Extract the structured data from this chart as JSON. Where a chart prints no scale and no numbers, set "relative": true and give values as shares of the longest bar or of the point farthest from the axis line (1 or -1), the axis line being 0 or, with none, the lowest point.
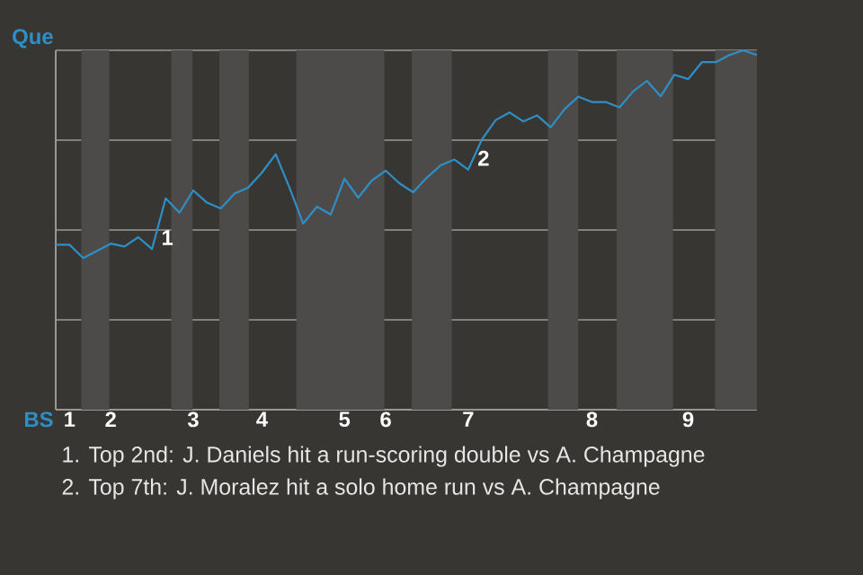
{
  "chart_data": {
    "type": "line",
    "color": "#2e8fc8",
    "relative": true,
    "categories": [
      null,
      "1",
      null,
      null,
      "2",
      null,
      null,
      null,
      null,
      null,
      "3",
      null,
      null,
      null,
      null,
      "4",
      null,
      null,
      null,
      null,
      null,
      "5",
      null,
      null,
      "6",
      null,
      null,
      null,
      null,
      null,
      "7",
      null,
      null,
      null,
      null,
      null,
      null,
      null,
      null,
      "8",
      null,
      null,
      null,
      null,
      null,
      null,
      "9",
      null,
      null,
      null,
      null,
      null
    ],
    "values": [
      0.459,
      0.459,
      0.422,
      0.442,
      0.462,
      0.454,
      0.48,
      0.447,
      0.588,
      0.548,
      0.61,
      0.576,
      0.56,
      0.601,
      0.618,
      0.66,
      0.711,
      0.618,
      0.518,
      0.565,
      0.543,
      0.643,
      0.59,
      0.638,
      0.665,
      0.63,
      0.605,
      0.646,
      0.68,
      0.696,
      0.668,
      0.752,
      0.806,
      0.827,
      0.802,
      0.819,
      0.786,
      0.836,
      0.871,
      0.856,
      0.856,
      0.841,
      0.886,
      0.915,
      0.872,
      0.932,
      0.92,
      0.967,
      0.967,
      0.987,
      1,
      0.987
    ],
    "grid": "y",
    "marker": "none",
    "line_style": "solid",
    "annotations": [
      "1",
      "2",
      "Que",
      "BS",
      "1. Top 2nd: J. Daniels hit a run-scoring double vs A. Champagne",
      "2. Top 7th: J. Moralez hit a solo home run vs A. Champagne"
    ]
  }
}
